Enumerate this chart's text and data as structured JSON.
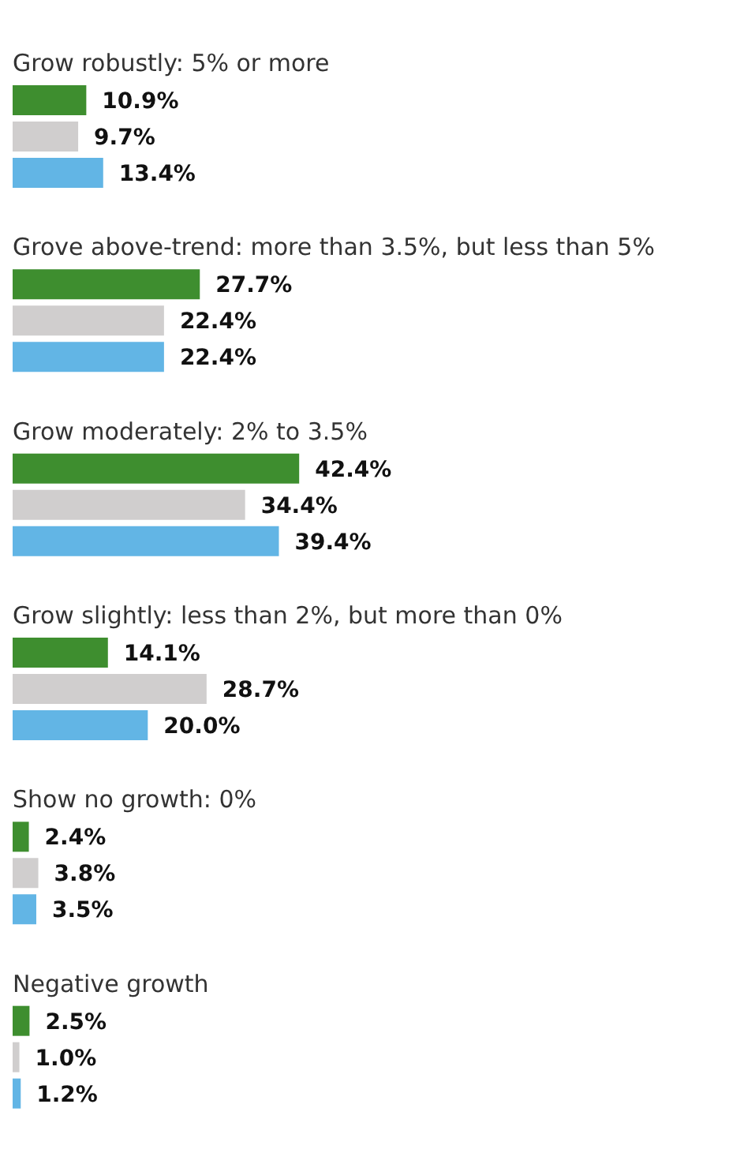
{
  "chart_data": {
    "type": "bar",
    "orientation": "horizontal",
    "categories": [
      "Grow robustly: 5% or more",
      "Grove above-trend: more than 3.5%, but less than 5%",
      "Grow moderately: 2% to 3.5%",
      "Grow slightly: less than 2%, but more than 0%",
      "Show no growth: 0%",
      "Negative growth"
    ],
    "series": [
      {
        "color": "#3e8e2f",
        "values": [
          10.9,
          27.7,
          42.4,
          14.1,
          2.4,
          2.5
        ],
        "value_labels": [
          "10.9%",
          "27.7%",
          "42.4%",
          "14.1%",
          "2.4%",
          "2.5%"
        ]
      },
      {
        "color": "#d0cece",
        "values": [
          9.7,
          22.4,
          34.4,
          28.7,
          3.8,
          1.0
        ],
        "value_labels": [
          "9.7%",
          "22.4%",
          "34.4%",
          "28.7%",
          "3.8%",
          "1.0%"
        ]
      },
      {
        "color": "#62b5e5",
        "values": [
          13.4,
          22.4,
          39.4,
          20.0,
          3.5,
          1.2
        ],
        "value_labels": [
          "13.4%",
          "22.4%",
          "39.4%",
          "20.0%",
          "3.5%",
          "1.2%"
        ]
      }
    ],
    "legend": false,
    "grid": false
  }
}
